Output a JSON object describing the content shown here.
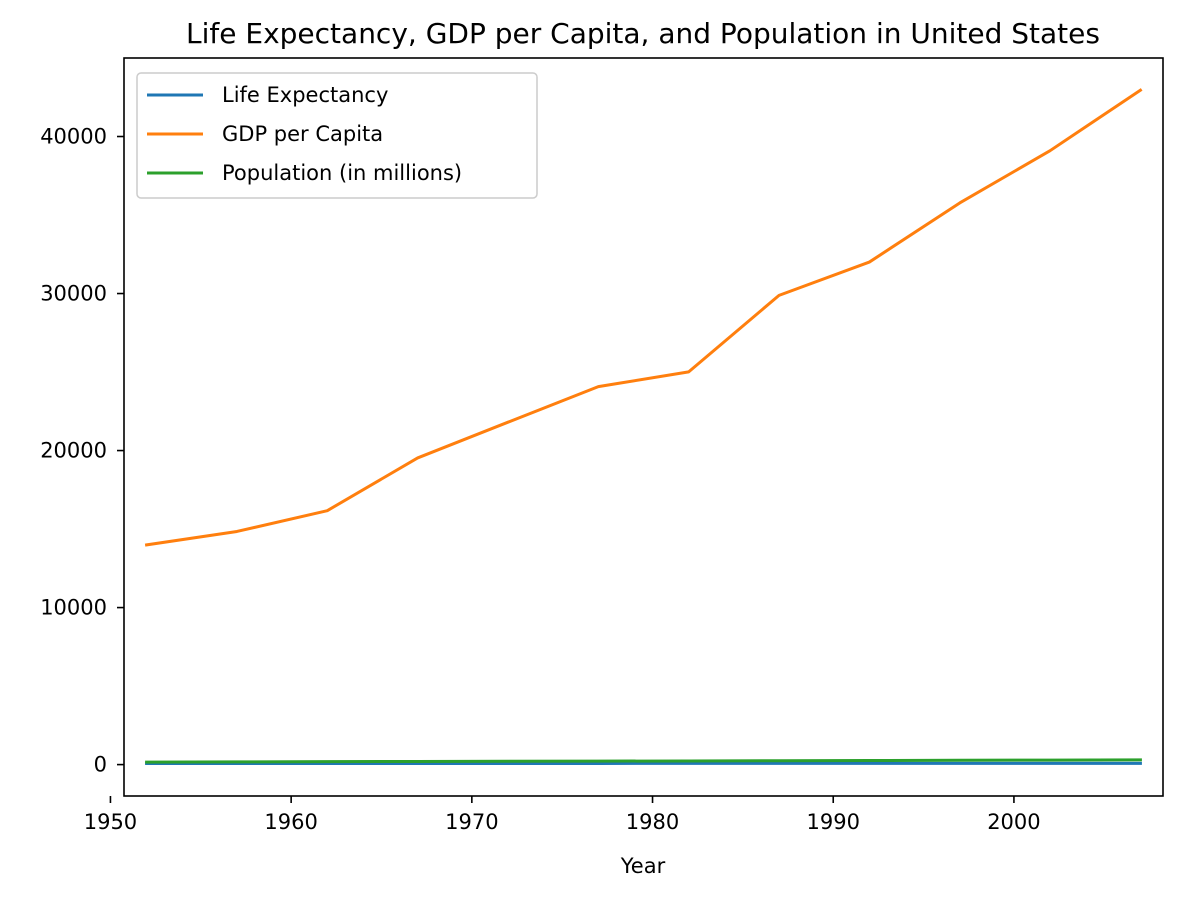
{
  "chart_data": {
    "type": "line",
    "title": "Life Expectancy, GDP per Capita, and Population in United States",
    "xlabel": "Year",
    "ylabel": "",
    "x": [
      1952,
      1957,
      1962,
      1967,
      1972,
      1977,
      1982,
      1987,
      1992,
      1997,
      2002,
      2007
    ],
    "xlim": [
      1950.75,
      2008.25
    ],
    "ylim": [
      -2000,
      45000
    ],
    "xticks": [
      1950,
      1960,
      1970,
      1980,
      1990,
      2000
    ],
    "yticks": [
      0,
      10000,
      20000,
      30000,
      40000
    ],
    "grid": false,
    "legend_position": "top-left",
    "series": [
      {
        "name": "Life Expectancy",
        "color": "#1f77b4",
        "values": [
          68.4,
          69.5,
          70.2,
          70.8,
          71.3,
          73.4,
          74.7,
          75.0,
          76.1,
          76.8,
          77.3,
          78.2
        ]
      },
      {
        "name": "GDP per Capita",
        "color": "#ff7f0e",
        "values": [
          13990,
          14847,
          16173,
          19530,
          21806,
          24073,
          25010,
          29884,
          32004,
          35767,
          39097,
          42952
        ]
      },
      {
        "name": "Population (in millions)",
        "color": "#2ca02c",
        "values": [
          157.6,
          171.98,
          186.54,
          198.71,
          209.9,
          220.24,
          232.19,
          242.8,
          256.89,
          272.91,
          287.68,
          301.14
        ]
      }
    ]
  }
}
